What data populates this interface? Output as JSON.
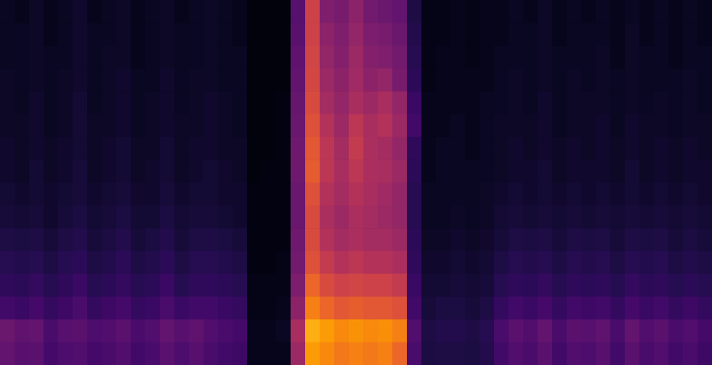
{
  "chart_data": {
    "type": "heatmap",
    "tick_labels": false,
    "values": [
      [
        0.06,
        0.05,
        0.07,
        0.05,
        0.06,
        0.08,
        0.05,
        0.06,
        0.07,
        0.05,
        0.06,
        0.07,
        0.05,
        0.06,
        0.07,
        0.06,
        0.05,
        0.02,
        0.02,
        0.02,
        0.25,
        0.55,
        0.35,
        0.33,
        0.38,
        0.32,
        0.3,
        0.28,
        0.12,
        0.04,
        0.04,
        0.05,
        0.04,
        0.05,
        0.05,
        0.06,
        0.05,
        0.07,
        0.05,
        0.06,
        0.05,
        0.06,
        0.05,
        0.06,
        0.05,
        0.06,
        0.05,
        0.06,
        0.05
      ],
      [
        0.06,
        0.06,
        0.07,
        0.05,
        0.06,
        0.08,
        0.06,
        0.06,
        0.07,
        0.05,
        0.06,
        0.07,
        0.06,
        0.06,
        0.07,
        0.06,
        0.05,
        0.02,
        0.02,
        0.02,
        0.26,
        0.55,
        0.38,
        0.35,
        0.4,
        0.34,
        0.33,
        0.3,
        0.13,
        0.04,
        0.04,
        0.05,
        0.04,
        0.05,
        0.05,
        0.06,
        0.06,
        0.07,
        0.05,
        0.06,
        0.06,
        0.06,
        0.05,
        0.07,
        0.05,
        0.06,
        0.05,
        0.06,
        0.05
      ],
      [
        0.06,
        0.06,
        0.07,
        0.06,
        0.06,
        0.08,
        0.06,
        0.07,
        0.07,
        0.05,
        0.06,
        0.07,
        0.06,
        0.06,
        0.07,
        0.06,
        0.06,
        0.02,
        0.02,
        0.02,
        0.27,
        0.56,
        0.4,
        0.36,
        0.42,
        0.36,
        0.35,
        0.32,
        0.14,
        0.04,
        0.05,
        0.05,
        0.04,
        0.05,
        0.06,
        0.06,
        0.06,
        0.07,
        0.06,
        0.06,
        0.06,
        0.07,
        0.05,
        0.07,
        0.06,
        0.06,
        0.05,
        0.06,
        0.06
      ],
      [
        0.07,
        0.06,
        0.07,
        0.06,
        0.07,
        0.08,
        0.06,
        0.07,
        0.08,
        0.06,
        0.06,
        0.08,
        0.06,
        0.07,
        0.07,
        0.06,
        0.06,
        0.02,
        0.02,
        0.02,
        0.28,
        0.57,
        0.42,
        0.38,
        0.43,
        0.38,
        0.4,
        0.33,
        0.15,
        0.04,
        0.05,
        0.05,
        0.05,
        0.05,
        0.06,
        0.07,
        0.06,
        0.07,
        0.06,
        0.07,
        0.06,
        0.07,
        0.06,
        0.07,
        0.06,
        0.06,
        0.06,
        0.07,
        0.06
      ],
      [
        0.07,
        0.06,
        0.08,
        0.06,
        0.07,
        0.09,
        0.06,
        0.07,
        0.08,
        0.06,
        0.07,
        0.08,
        0.06,
        0.07,
        0.08,
        0.07,
        0.06,
        0.02,
        0.02,
        0.03,
        0.29,
        0.58,
        0.44,
        0.4,
        0.45,
        0.42,
        0.45,
        0.4,
        0.18,
        0.05,
        0.05,
        0.05,
        0.05,
        0.06,
        0.06,
        0.07,
        0.06,
        0.08,
        0.06,
        0.07,
        0.07,
        0.07,
        0.06,
        0.07,
        0.06,
        0.07,
        0.06,
        0.07,
        0.06
      ],
      [
        0.07,
        0.07,
        0.08,
        0.06,
        0.07,
        0.09,
        0.07,
        0.07,
        0.08,
        0.06,
        0.07,
        0.08,
        0.07,
        0.07,
        0.08,
        0.07,
        0.06,
        0.02,
        0.02,
        0.03,
        0.3,
        0.6,
        0.48,
        0.42,
        0.5,
        0.45,
        0.48,
        0.42,
        0.2,
        0.05,
        0.05,
        0.06,
        0.05,
        0.06,
        0.07,
        0.07,
        0.07,
        0.08,
        0.06,
        0.07,
        0.07,
        0.08,
        0.06,
        0.08,
        0.07,
        0.07,
        0.06,
        0.07,
        0.07
      ],
      [
        0.08,
        0.07,
        0.08,
        0.07,
        0.08,
        0.09,
        0.07,
        0.08,
        0.09,
        0.07,
        0.07,
        0.09,
        0.07,
        0.08,
        0.08,
        0.07,
        0.07,
        0.02,
        0.02,
        0.03,
        0.31,
        0.62,
        0.5,
        0.44,
        0.52,
        0.46,
        0.44,
        0.4,
        0.16,
        0.05,
        0.06,
        0.06,
        0.05,
        0.06,
        0.07,
        0.08,
        0.07,
        0.08,
        0.07,
        0.08,
        0.07,
        0.08,
        0.07,
        0.08,
        0.07,
        0.08,
        0.07,
        0.08,
        0.07
      ],
      [
        0.08,
        0.07,
        0.09,
        0.07,
        0.08,
        0.1,
        0.07,
        0.08,
        0.09,
        0.07,
        0.08,
        0.09,
        0.07,
        0.08,
        0.09,
        0.08,
        0.07,
        0.02,
        0.03,
        0.03,
        0.31,
        0.63,
        0.5,
        0.45,
        0.5,
        0.46,
        0.45,
        0.42,
        0.15,
        0.05,
        0.06,
        0.06,
        0.06,
        0.06,
        0.07,
        0.08,
        0.08,
        0.09,
        0.07,
        0.08,
        0.08,
        0.08,
        0.07,
        0.09,
        0.07,
        0.08,
        0.07,
        0.08,
        0.08
      ],
      [
        0.09,
        0.08,
        0.09,
        0.08,
        0.09,
        0.1,
        0.08,
        0.09,
        0.1,
        0.08,
        0.08,
        0.1,
        0.08,
        0.09,
        0.09,
        0.08,
        0.08,
        0.03,
        0.03,
        0.03,
        0.3,
        0.6,
        0.48,
        0.44,
        0.48,
        0.45,
        0.43,
        0.4,
        0.14,
        0.06,
        0.06,
        0.06,
        0.06,
        0.07,
        0.08,
        0.09,
        0.08,
        0.09,
        0.08,
        0.09,
        0.08,
        0.09,
        0.08,
        0.09,
        0.08,
        0.09,
        0.08,
        0.09,
        0.08
      ],
      [
        0.1,
        0.09,
        0.1,
        0.08,
        0.1,
        0.11,
        0.09,
        0.1,
        0.11,
        0.09,
        0.09,
        0.11,
        0.09,
        0.1,
        0.1,
        0.09,
        0.08,
        0.03,
        0.03,
        0.03,
        0.3,
        0.58,
        0.46,
        0.42,
        0.46,
        0.44,
        0.42,
        0.4,
        0.14,
        0.06,
        0.06,
        0.07,
        0.06,
        0.07,
        0.09,
        0.1,
        0.09,
        0.1,
        0.09,
        0.1,
        0.09,
        0.1,
        0.09,
        0.1,
        0.09,
        0.1,
        0.09,
        0.1,
        0.09
      ],
      [
        0.12,
        0.11,
        0.12,
        0.1,
        0.12,
        0.13,
        0.1,
        0.11,
        0.13,
        0.1,
        0.11,
        0.13,
        0.1,
        0.12,
        0.12,
        0.11,
        0.1,
        0.03,
        0.03,
        0.03,
        0.31,
        0.58,
        0.48,
        0.44,
        0.46,
        0.44,
        0.44,
        0.42,
        0.15,
        0.07,
        0.07,
        0.08,
        0.07,
        0.08,
        0.1,
        0.12,
        0.11,
        0.12,
        0.1,
        0.12,
        0.11,
        0.12,
        0.1,
        0.12,
        0.11,
        0.12,
        0.1,
        0.11,
        0.1
      ],
      [
        0.14,
        0.13,
        0.14,
        0.12,
        0.14,
        0.15,
        0.12,
        0.13,
        0.15,
        0.12,
        0.13,
        0.15,
        0.12,
        0.14,
        0.14,
        0.13,
        0.12,
        0.03,
        0.03,
        0.04,
        0.32,
        0.6,
        0.52,
        0.48,
        0.5,
        0.48,
        0.48,
        0.46,
        0.16,
        0.08,
        0.08,
        0.09,
        0.08,
        0.09,
        0.12,
        0.14,
        0.13,
        0.14,
        0.12,
        0.14,
        0.13,
        0.14,
        0.12,
        0.14,
        0.13,
        0.14,
        0.12,
        0.13,
        0.12
      ],
      [
        0.16,
        0.15,
        0.17,
        0.14,
        0.16,
        0.18,
        0.14,
        0.15,
        0.17,
        0.14,
        0.15,
        0.18,
        0.14,
        0.16,
        0.16,
        0.15,
        0.14,
        0.04,
        0.04,
        0.04,
        0.34,
        0.66,
        0.58,
        0.55,
        0.56,
        0.55,
        0.55,
        0.52,
        0.18,
        0.09,
        0.09,
        0.1,
        0.09,
        0.1,
        0.14,
        0.16,
        0.15,
        0.17,
        0.14,
        0.16,
        0.15,
        0.16,
        0.14,
        0.17,
        0.15,
        0.16,
        0.14,
        0.15,
        0.14
      ],
      [
        0.2,
        0.18,
        0.21,
        0.17,
        0.19,
        0.22,
        0.17,
        0.19,
        0.21,
        0.17,
        0.18,
        0.22,
        0.18,
        0.2,
        0.2,
        0.18,
        0.17,
        0.04,
        0.04,
        0.05,
        0.38,
        0.72,
        0.66,
        0.62,
        0.64,
        0.62,
        0.62,
        0.6,
        0.2,
        0.1,
        0.11,
        0.11,
        0.1,
        0.12,
        0.17,
        0.2,
        0.18,
        0.21,
        0.17,
        0.2,
        0.19,
        0.2,
        0.17,
        0.21,
        0.18,
        0.2,
        0.17,
        0.19,
        0.17
      ],
      [
        0.3,
        0.27,
        0.28,
        0.22,
        0.25,
        0.26,
        0.23,
        0.24,
        0.26,
        0.22,
        0.24,
        0.28,
        0.25,
        0.27,
        0.24,
        0.22,
        0.21,
        0.05,
        0.05,
        0.06,
        0.45,
        0.82,
        0.78,
        0.74,
        0.76,
        0.74,
        0.75,
        0.72,
        0.24,
        0.12,
        0.13,
        0.13,
        0.12,
        0.14,
        0.22,
        0.26,
        0.24,
        0.28,
        0.22,
        0.26,
        0.25,
        0.27,
        0.22,
        0.28,
        0.24,
        0.26,
        0.22,
        0.24,
        0.21
      ],
      [
        0.28,
        0.25,
        0.26,
        0.21,
        0.23,
        0.24,
        0.21,
        0.22,
        0.24,
        0.2,
        0.22,
        0.26,
        0.23,
        0.25,
        0.22,
        0.2,
        0.19,
        0.05,
        0.05,
        0.05,
        0.42,
        0.78,
        0.74,
        0.7,
        0.72,
        0.7,
        0.72,
        0.66,
        0.22,
        0.11,
        0.12,
        0.12,
        0.11,
        0.13,
        0.2,
        0.24,
        0.22,
        0.26,
        0.2,
        0.24,
        0.23,
        0.25,
        0.2,
        0.26,
        0.22,
        0.24,
        0.2,
        0.22,
        0.19
      ]
    ]
  }
}
